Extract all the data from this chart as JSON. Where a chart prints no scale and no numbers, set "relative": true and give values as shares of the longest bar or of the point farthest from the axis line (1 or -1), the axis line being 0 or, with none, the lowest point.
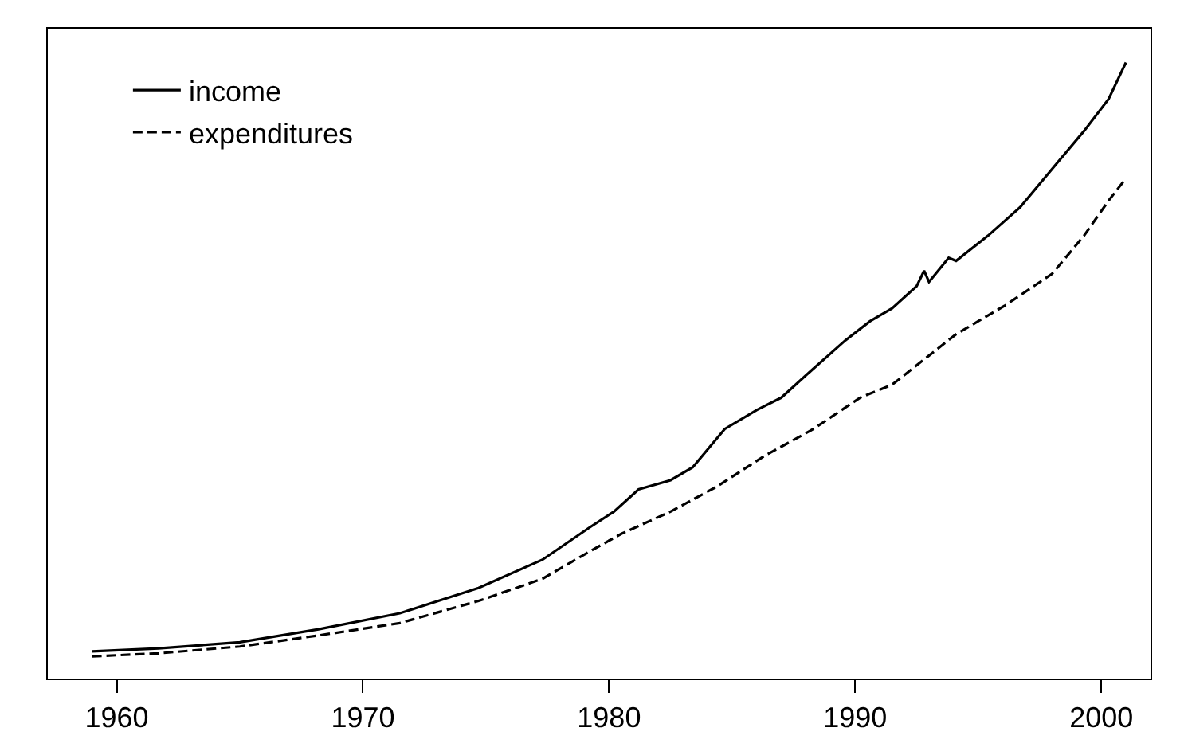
{
  "chart_data": {
    "type": "line",
    "relative": true,
    "xlim": [
      1957.2,
      2002.0
    ],
    "xticks": [
      1960,
      1970,
      1980,
      1990,
      2000
    ],
    "legend": "top left",
    "series": [
      {
        "name": "income",
        "color": "#000000",
        "line_style": "solid",
        "x": [
          1959.0,
          1961.7,
          1965.0,
          1968.2,
          1971.5,
          1974.7,
          1977.3,
          1979.2,
          1980.2,
          1981.2,
          1982.5,
          1983.4,
          1984.7,
          1986.0,
          1987.0,
          1988.3,
          1989.6,
          1990.6,
          1991.5,
          1992.5,
          1992.8,
          1993.0,
          1993.8,
          1994.1,
          1995.4,
          1996.7,
          1998.0,
          1999.3,
          2000.3,
          2001.0
        ],
        "values": [
          0.044,
          0.049,
          0.059,
          0.08,
          0.106,
          0.147,
          0.193,
          0.245,
          0.271,
          0.307,
          0.322,
          0.343,
          0.405,
          0.436,
          0.456,
          0.503,
          0.549,
          0.58,
          0.601,
          0.637,
          0.662,
          0.644,
          0.683,
          0.678,
          0.719,
          0.765,
          0.827,
          0.889,
          0.941,
          1.0
        ]
      },
      {
        "name": "expenditures",
        "color": "#000000",
        "line_style": "dashed",
        "x": [
          1959.0,
          1961.7,
          1965.0,
          1968.2,
          1971.5,
          1974.7,
          1977.3,
          1979.2,
          1980.5,
          1982.5,
          1984.4,
          1986.3,
          1988.3,
          1990.2,
          1991.5,
          1992.8,
          1994.1,
          1996.1,
          1998.0,
          1999.3,
          2000.3,
          2001.0
        ],
        "values": [
          0.036,
          0.041,
          0.052,
          0.07,
          0.09,
          0.126,
          0.162,
          0.206,
          0.235,
          0.271,
          0.312,
          0.361,
          0.405,
          0.456,
          0.477,
          0.518,
          0.559,
          0.606,
          0.657,
          0.719,
          0.776,
          0.812
        ]
      }
    ]
  }
}
